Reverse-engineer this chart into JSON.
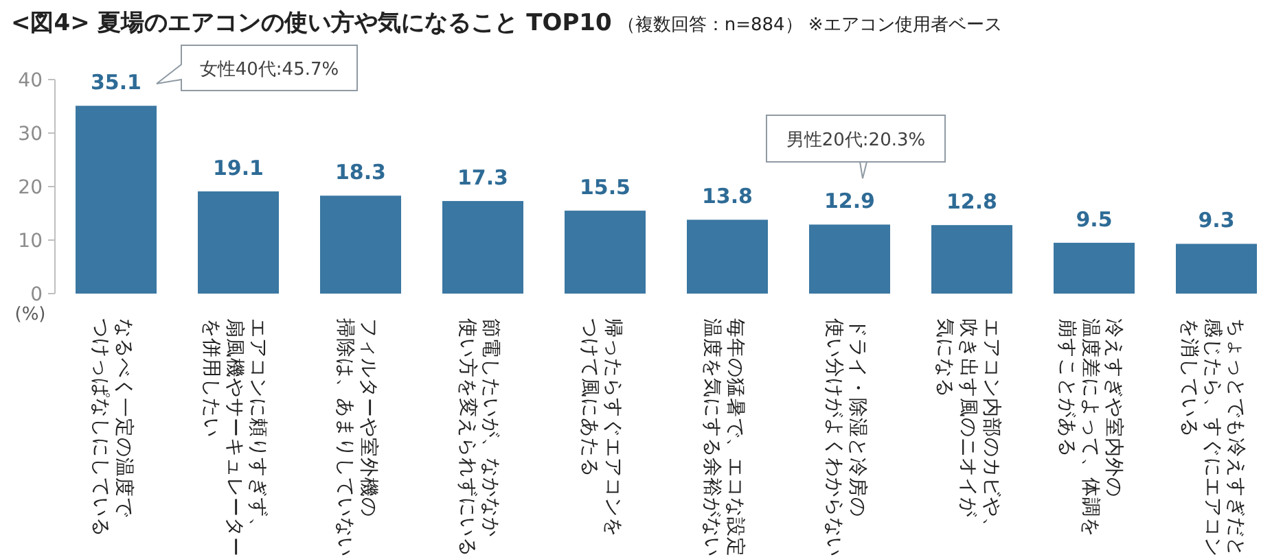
{
  "chart_data": {
    "type": "bar",
    "title": "<図4> 夏場のエアコンの使い方や気になること TOP10",
    "subtitle": "（複数回答：n=884） ※エアコン使用者ベース",
    "ylabel": "(%)",
    "categories": [
      "なるべく一定の温度でつけっぱなしにしている",
      "エアコンに頼りすぎず、扇風機やサーキュレーターを併用したい",
      "フィルターや室外機の掃除は、あまりしていない",
      "節電したいが、なかなか使い方を変えられずにいる",
      "帰ったらすぐエアコンをつけて風にあたる",
      "毎年の猛暑で、エコな設定温度を気にする余裕がない",
      "ドライ・除湿と冷房の使い分けがよくわからない",
      "エアコン内部のカビや、吹き出す風のニオイが気になる",
      "冷えすぎや室内外の温度差によって、体調を崩すことがある",
      "ちょっとでも冷えすぎだと感じたら、すぐにエアコンを消している"
    ],
    "values": [
      35.1,
      19.1,
      18.3,
      17.3,
      15.5,
      13.8,
      12.9,
      12.8,
      9.5,
      9.3
    ],
    "color": "#3a77a2",
    "ylim": [
      0,
      40
    ],
    "yticks": [
      0,
      10,
      20,
      30,
      40
    ],
    "data_labels": true,
    "annotations": [
      "女性40代:45.7%",
      "男性20代:20.3%"
    ]
  }
}
